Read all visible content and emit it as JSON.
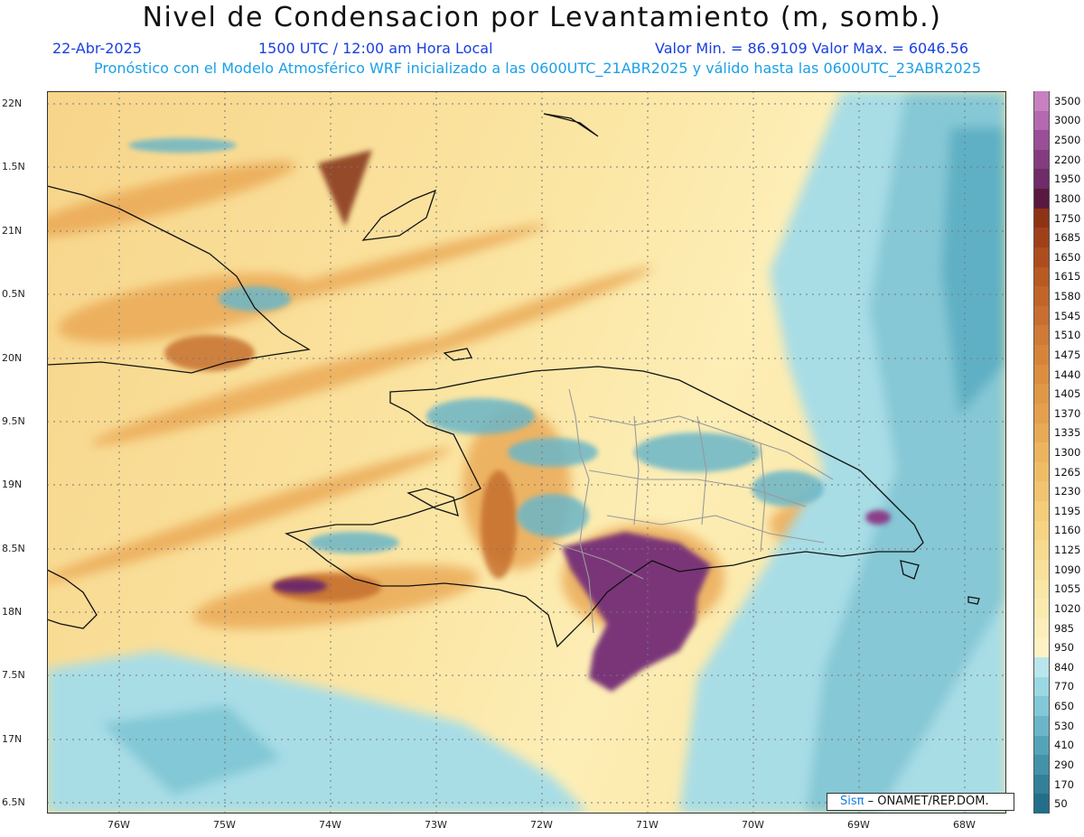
{
  "header": {
    "title": "Nivel de Condensacion por Levantamiento (m, somb.)",
    "date": "22-Abr-2025",
    "time": "1500 UTC / 12:00 am Hora Local",
    "minmax": "Valor Min. = 86.9109   Valor Max. = 6046.56",
    "model_line": "Pronóstico con el Modelo Atmosférico WRF inicializado a las 0600UTC_21ABR2025 y válido hasta las  0600UTC_23ABR2025"
  },
  "axes": {
    "lon_labels": [
      "76W",
      "75W",
      "74W",
      "73W",
      "72W",
      "71W",
      "70W",
      "69W",
      "68W"
    ],
    "lat_labels": [
      "22N",
      "1.5N",
      "21N",
      "0.5N",
      "20N",
      "9.5N",
      "19N",
      "8.5N",
      "18N",
      "7.5N",
      "17N",
      "6.5N"
    ],
    "lon_range": [
      -76.7,
      -67.6
    ],
    "lat_range": [
      16.4,
      22.1
    ]
  },
  "colorbar": {
    "levels": [
      "3500",
      "3000",
      "2500",
      "2200",
      "1950",
      "1800",
      "1750",
      "1685",
      "1650",
      "1615",
      "1580",
      "1545",
      "1510",
      "1475",
      "1440",
      "1405",
      "1370",
      "1335",
      "1300",
      "1265",
      "1230",
      "1195",
      "1160",
      "1125",
      "1090",
      "1055",
      "1020",
      "985",
      "950",
      "840",
      "770",
      "650",
      "530",
      "410",
      "290",
      "170",
      "50"
    ],
    "colors": [
      "#c880c0",
      "#b468b0",
      "#9a4e98",
      "#843c80",
      "#6e2c68",
      "#5a1840",
      "#8e3216",
      "#a0401a",
      "#ae4c1e",
      "#b85a22",
      "#c26428",
      "#c86e30",
      "#d07a36",
      "#d6843a",
      "#dc8e40",
      "#e09846",
      "#e4a04e",
      "#e8aa56",
      "#ecb45e",
      "#efbc66",
      "#f2c470",
      "#f4cc7a",
      "#f6d484",
      "#f8da8e",
      "#f9e09a",
      "#fae6a6",
      "#fbeab0",
      "#fceeba",
      "#fdf2c4",
      "#b8e6ec",
      "#9cd8e2",
      "#82c8d6",
      "#6ab6c8",
      "#54a4b8",
      "#4292a8",
      "#328098",
      "#246e88"
    ]
  },
  "overlay": {
    "credit_logo": "Sisπ",
    "credit_text": " – ONAMET/REP.DOM."
  }
}
